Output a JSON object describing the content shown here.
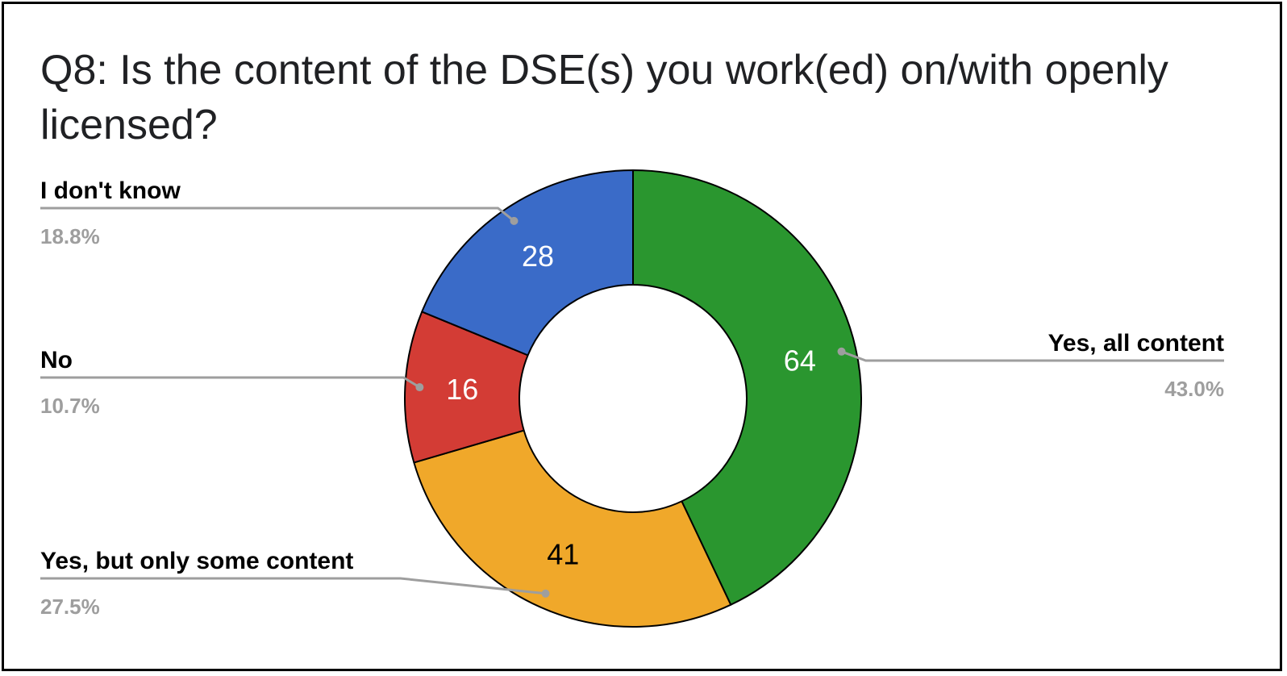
{
  "chart_data": {
    "type": "pie",
    "donut": true,
    "title": "Q8: Is the content of the DSE(s) you work(ed) on/with openly licensed?",
    "slices": [
      {
        "label": "Yes, all content",
        "value": 64,
        "percent": "43.0%",
        "color": "#2a962f",
        "value_color": "#ffffff"
      },
      {
        "label": "Yes, but only some content",
        "value": 41,
        "percent": "27.5%",
        "color": "#f0a82a",
        "value_color": "#000000"
      },
      {
        "label": "No",
        "value": 16,
        "percent": "10.7%",
        "color": "#d33c35",
        "value_color": "#ffffff"
      },
      {
        "label": "I don't know",
        "value": 28,
        "percent": "18.8%",
        "color": "#3a6bc8",
        "value_color": "#ffffff"
      }
    ],
    "legend": "labels-with-leader-lines"
  }
}
